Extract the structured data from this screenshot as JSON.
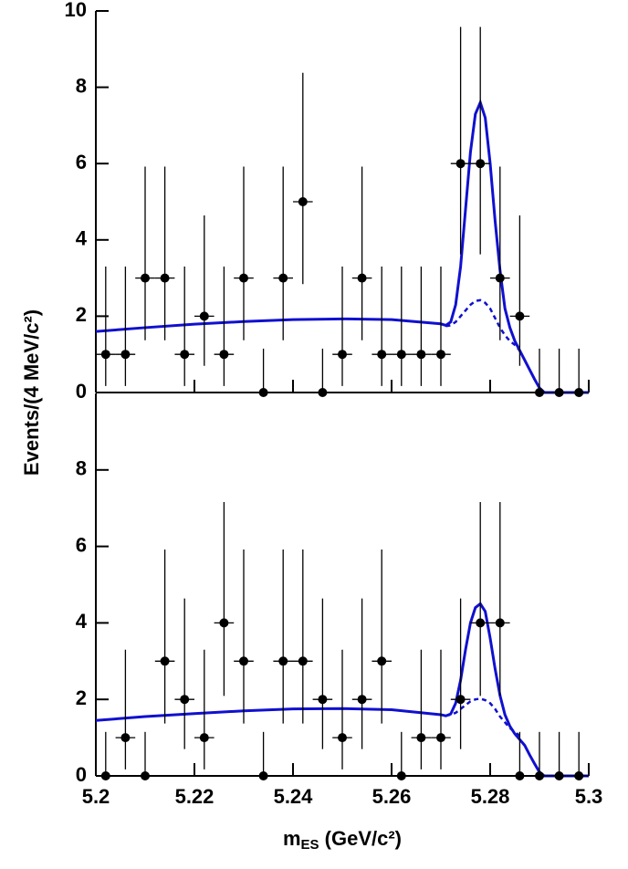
{
  "chart_data": [
    {
      "type": "errorbar",
      "ylabel": "Events/(4 MeV/c²)",
      "xlim": [
        5.2,
        5.3
      ],
      "ylim": [
        0,
        10
      ],
      "yticks": [
        0,
        2,
        4,
        6,
        8,
        10
      ],
      "x": [
        5.202,
        5.206,
        5.21,
        5.214,
        5.218,
        5.222,
        5.226,
        5.23,
        5.234,
        5.238,
        5.242,
        5.246,
        5.25,
        5.254,
        5.258,
        5.262,
        5.266,
        5.27,
        5.274,
        5.278,
        5.282,
        5.286,
        5.29,
        5.294,
        5.298
      ],
      "xerr": 0.002,
      "values": [
        1,
        1,
        3,
        3,
        1,
        2,
        1,
        3,
        0,
        3,
        5,
        0,
        1,
        3,
        1,
        1,
        1,
        1,
        6,
        6,
        3,
        2,
        0,
        0,
        0
      ],
      "yerr_low": [
        0.83,
        0.83,
        1.63,
        1.63,
        0.83,
        1.3,
        0.83,
        1.63,
        0,
        1.63,
        2.16,
        0,
        0.83,
        1.63,
        0.83,
        0.83,
        0.83,
        0.83,
        2.38,
        2.38,
        1.63,
        1.3,
        0,
        0,
        0
      ],
      "yerr_high": [
        2.3,
        2.3,
        2.92,
        2.92,
        2.3,
        2.64,
        2.3,
        2.92,
        1.15,
        2.92,
        3.38,
        1.15,
        2.3,
        2.92,
        2.3,
        2.3,
        2.3,
        2.3,
        3.58,
        3.58,
        2.92,
        2.64,
        1.15,
        1.15,
        1.15
      ],
      "point_color": "#000000",
      "curve_color": "#1010d0",
      "curve_x": [
        5.2,
        5.21,
        5.22,
        5.23,
        5.24,
        5.25,
        5.26,
        5.27,
        5.271,
        5.272,
        5.273,
        5.274,
        5.275,
        5.276,
        5.277,
        5.278,
        5.279,
        5.28,
        5.281,
        5.282,
        5.283,
        5.284,
        5.285,
        5.286,
        5.287,
        5.288,
        5.289,
        5.29,
        5.291,
        5.295,
        5.3
      ],
      "total": [
        1.6,
        1.7,
        1.79,
        1.86,
        1.91,
        1.93,
        1.91,
        1.8,
        1.76,
        1.85,
        2.3,
        3.3,
        4.8,
        6.3,
        7.3,
        7.6,
        7.2,
        6.0,
        4.5,
        3.2,
        2.2,
        1.7,
        1.35,
        1.1,
        0.85,
        0.6,
        0.35,
        0.12,
        0,
        0,
        0
      ],
      "background": [
        null,
        null,
        null,
        null,
        null,
        null,
        null,
        null,
        1.74,
        1.76,
        1.85,
        2.0,
        2.15,
        2.3,
        2.4,
        2.42,
        2.35,
        2.2,
        1.95,
        1.7,
        1.5,
        1.35,
        1.25,
        1.1,
        null,
        null,
        null,
        null,
        null,
        null,
        null
      ]
    },
    {
      "type": "errorbar",
      "xlabel": [
        "m",
        "ES",
        " (GeV/c²)"
      ],
      "xlim": [
        5.2,
        5.3
      ],
      "xticks": [
        5.2,
        5.22,
        5.24,
        5.26,
        5.28,
        5.3
      ],
      "ylim": [
        0,
        10
      ],
      "yticks": [
        0,
        2,
        4,
        6,
        8
      ],
      "x": [
        5.202,
        5.206,
        5.21,
        5.214,
        5.218,
        5.222,
        5.226,
        5.23,
        5.234,
        5.238,
        5.242,
        5.246,
        5.25,
        5.254,
        5.258,
        5.262,
        5.266,
        5.27,
        5.274,
        5.278,
        5.282,
        5.286,
        5.29,
        5.294,
        5.298
      ],
      "xerr": 0.002,
      "values": [
        0,
        1,
        0,
        3,
        2,
        1,
        4,
        3,
        0,
        3,
        3,
        2,
        1,
        2,
        3,
        0,
        1,
        1,
        2,
        4,
        4,
        0,
        0,
        0,
        0
      ],
      "yerr_low": [
        0,
        0.83,
        0,
        1.63,
        1.3,
        0.83,
        1.91,
        1.63,
        0,
        1.63,
        1.63,
        1.3,
        0.83,
        1.3,
        1.63,
        0,
        0.83,
        0.83,
        1.3,
        1.91,
        1.91,
        0,
        0,
        0,
        0
      ],
      "yerr_high": [
        1.15,
        2.3,
        1.15,
        2.92,
        2.64,
        2.3,
        3.16,
        2.92,
        1.15,
        2.92,
        2.92,
        2.64,
        2.3,
        2.64,
        2.92,
        1.15,
        2.3,
        2.3,
        2.64,
        3.16,
        3.16,
        1.15,
        1.15,
        1.15,
        1.15
      ],
      "point_color": "#000000",
      "curve_color": "#1010d0",
      "curve_x": [
        5.2,
        5.21,
        5.22,
        5.23,
        5.24,
        5.25,
        5.26,
        5.27,
        5.271,
        5.272,
        5.273,
        5.274,
        5.275,
        5.276,
        5.277,
        5.278,
        5.279,
        5.28,
        5.281,
        5.282,
        5.283,
        5.284,
        5.285,
        5.286,
        5.287,
        5.288,
        5.289,
        5.29,
        5.291,
        5.295,
        5.3
      ],
      "total": [
        1.45,
        1.55,
        1.63,
        1.7,
        1.75,
        1.76,
        1.73,
        1.6,
        1.57,
        1.62,
        1.9,
        2.5,
        3.3,
        4.0,
        4.4,
        4.5,
        4.3,
        3.6,
        2.8,
        2.1,
        1.6,
        1.3,
        1.1,
        0.95,
        0.8,
        0.55,
        0.32,
        0.1,
        0,
        0,
        0
      ],
      "background": [
        null,
        null,
        null,
        null,
        null,
        null,
        null,
        null,
        1.57,
        1.6,
        1.65,
        1.75,
        1.85,
        1.95,
        2.0,
        2.02,
        1.98,
        1.9,
        1.75,
        1.55,
        1.4,
        1.25,
        1.15,
        1.05,
        null,
        null,
        null,
        null,
        null,
        null,
        null
      ]
    }
  ]
}
